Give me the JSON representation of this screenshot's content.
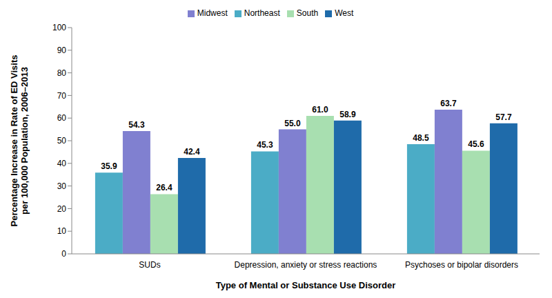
{
  "chart_data": {
    "type": "bar",
    "categories": [
      "SUDs",
      "Depression, anxiety or stress reactions",
      "Psychoses or bipolar disorders"
    ],
    "series": [
      {
        "name": "Northeast",
        "color": "#4BACC6",
        "values": [
          35.9,
          45.3,
          48.5
        ],
        "value_labels": [
          "35.9",
          "45.3",
          "48.5"
        ]
      },
      {
        "name": "Midwest",
        "color": "#8080D0",
        "values": [
          54.3,
          55.0,
          63.7
        ],
        "value_labels": [
          "54.3",
          "55.0",
          "63.7"
        ]
      },
      {
        "name": "South",
        "color": "#A8DFB0",
        "values": [
          26.4,
          61.0,
          45.6
        ],
        "value_labels": [
          "26.4",
          "61.0",
          "45.6"
        ]
      },
      {
        "name": "West",
        "color": "#1F6BAA",
        "values": [
          42.4,
          58.9,
          57.7
        ],
        "value_labels": [
          "42.4",
          "58.9",
          "57.7"
        ]
      }
    ],
    "xlabel": "Type of Mental or Substance Use Disorder",
    "ylabel": "Percentage Increase in Rate of ED Visits\nper 100,000 Population, 2006–2013",
    "ylim": [
      0,
      100
    ],
    "yticks": [
      0,
      10,
      20,
      30,
      40,
      50,
      60,
      70,
      80,
      90,
      100
    ],
    "grid": false,
    "legend": "top",
    "data_labels": true
  }
}
